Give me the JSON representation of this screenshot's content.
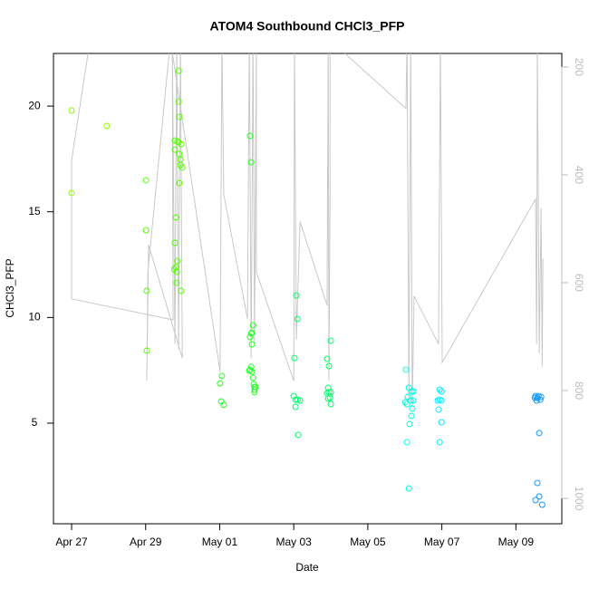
{
  "chart_data": {
    "type": "scatter",
    "title": "ATOM4 Southbound CHCl3_PFP",
    "x_label": "Date",
    "y_label": "CHCl3_PFP",
    "xlim": [
      -0.49,
      13.24
    ],
    "xticks": [
      {
        "value": 0,
        "label": "Apr 27"
      },
      {
        "value": 2,
        "label": "Apr 29"
      },
      {
        "value": 4,
        "label": "May 01"
      },
      {
        "value": 6,
        "label": "May 03"
      },
      {
        "value": 8,
        "label": "May 05"
      },
      {
        "value": 10,
        "label": "May 07"
      },
      {
        "value": 12,
        "label": "May 09"
      }
    ],
    "ylim": [
      0.24,
      22.49
    ],
    "yticks": [
      5,
      10,
      15,
      20
    ],
    "y2lim": [
      1047,
      175
    ],
    "y2ticks": [
      200,
      400,
      600,
      800,
      1000
    ],
    "series": [
      {
        "color": "#88ff00",
        "x": [
          0,
          0,
          0.95
        ],
        "values": [
          19.79,
          15.89,
          19.06
        ]
      },
      {
        "color": "#55ff00",
        "x": [
          2.01,
          2.01,
          2.03,
          2.03,
          2.79,
          2.79,
          2.82,
          2.79,
          2.77,
          2.82,
          2.84,
          2.84,
          2.86,
          2.89,
          2.89,
          2.91,
          2.89,
          2.86,
          2.96,
          2.91,
          2.94,
          2.94,
          2.99,
          2.91,
          2.96
        ],
        "values": [
          16.49,
          14.13,
          11.26,
          8.43,
          18.37,
          17.94,
          14.73,
          13.53,
          12.29,
          12.37,
          12.16,
          11.64,
          12.67,
          21.67,
          20.21,
          19.49,
          18.29,
          18.33,
          18.2,
          17.73,
          17.47,
          17.21,
          17.09,
          16.36,
          11.26
        ]
      },
      {
        "color": "#22ff22",
        "x": [
          4.06,
          4.01,
          4.04,
          4.11,
          4.82,
          4.85,
          4.85,
          4.82,
          4.87,
          4.8,
          4.9,
          4.92,
          4.94,
          4.94,
          4.97,
          4.94,
          4.85,
          4.82,
          4.87,
          4.9,
          4.87
        ],
        "values": [
          7.23,
          6.88,
          6.03,
          5.86,
          18.59,
          17.34,
          7.66,
          7.53,
          7.44,
          7.48,
          7.14,
          6.84,
          6.71,
          6.58,
          6.71,
          6.46,
          9.24,
          9.07,
          9.28,
          9.63,
          8.73
        ]
      },
      {
        "color": "#00ff66",
        "x": [
          6.07,
          6.1,
          6.02,
          6.0,
          6.05,
          6.1,
          6.17,
          6.05,
          6.12,
          6.9,
          6.95,
          6.93,
          6.95,
          6.9,
          7.0,
          6.98,
          6.93,
          7.0,
          7.0
        ],
        "values": [
          11.04,
          9.93,
          8.08,
          6.28,
          6.11,
          6.11,
          6.07,
          5.77,
          4.44,
          8.04,
          7.7,
          6.67,
          6.46,
          6.41,
          6.46,
          6.2,
          6.16,
          5.9,
          8.9
        ]
      },
      {
        "color": "#00ffdd",
        "x": [
          9.03,
          9.11,
          9.08,
          9.01,
          9.06,
          9.16,
          9.23,
          9.18,
          9.23,
          9.2,
          9.18,
          9.13,
          9.06,
          9.11
        ],
        "values": [
          7.53,
          6.67,
          6.24,
          5.99,
          5.9,
          6.07,
          6.07,
          6.5,
          6.5,
          5.69,
          5.34,
          4.96,
          4.1,
          1.91
        ]
      },
      {
        "color": "#00eeff",
        "x": [
          9.94,
          9.99,
          9.94,
          9.89,
          9.99,
          9.91,
          9.99,
          9.94
        ],
        "values": [
          6.58,
          6.5,
          6.11,
          6.07,
          6.07,
          5.64,
          5.04,
          4.1
        ]
      },
      {
        "color": "#1199ff",
        "x": [
          12.53,
          12.61,
          12.68,
          12.51,
          12.56,
          12.66,
          12.58,
          12.63,
          12.58,
          12.63,
          12.53,
          12.71
        ],
        "values": [
          6.28,
          6.28,
          6.24,
          6.2,
          6.07,
          6.11,
          6.2,
          4.53,
          2.17,
          1.53,
          1.36,
          1.14
        ]
      },
      {
        "type": "line",
        "axis": "y2",
        "color": "#c8c8c8",
        "x": [
          0.5,
          0,
          0,
          2.74,
          2.72,
          2.79,
          2.84,
          2.89,
          2.94,
          2.99,
          2.08,
          2.03,
          2.06,
          2.67,
          4.01,
          4.06,
          4.11,
          4.75,
          4.8,
          4.85,
          4.9,
          4.94,
          4.99,
          4.99,
          6.0,
          6.02,
          6.07,
          6.17,
          6.9,
          6.93,
          6.95,
          6.98,
          6.98,
          9.03,
          9.06,
          9.11,
          9.16,
          9.2,
          9.25,
          9.91,
          9.96,
          10.01,
          12.53,
          12.56,
          12.58,
          12.63,
          12.68,
          12.71,
          12.73
        ],
        "values": [
          150,
          373,
          630,
          669,
          150,
          714,
          150,
          723,
          150,
          740,
          530,
          782,
          580,
          150,
          765,
          150,
          437,
          667,
          150,
          740,
          150,
          714,
          150,
          580,
          782,
          150,
          706,
          487,
          642,
          150,
          782,
          437,
          150,
          277,
          150,
          815,
          150,
          832,
          625,
          714,
          150,
          748,
          445,
          714,
          150,
          731,
          462,
          756,
          555
        ]
      }
    ]
  }
}
